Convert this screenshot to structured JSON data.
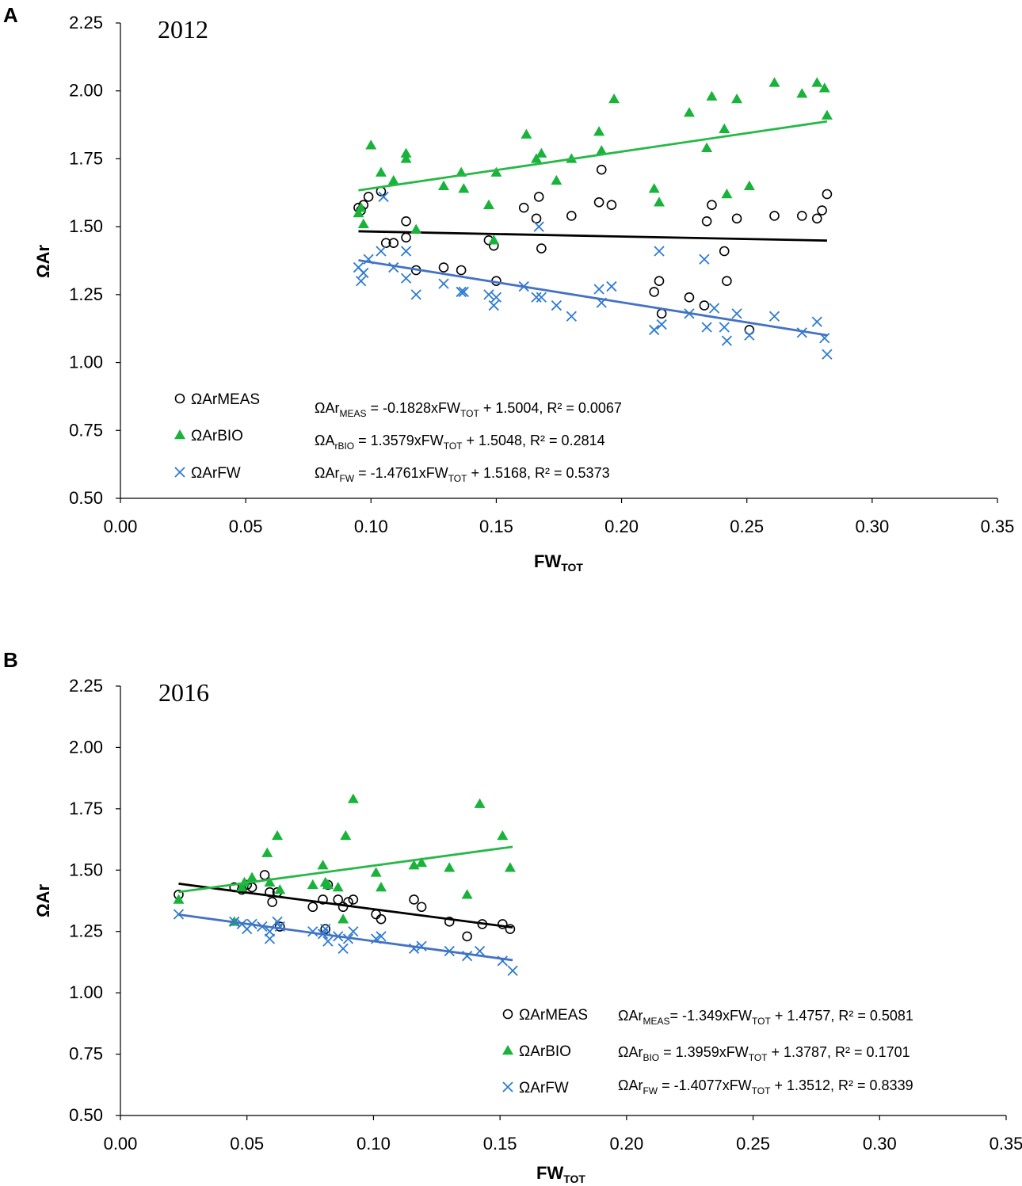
{
  "colors": {
    "meas": "#000000",
    "bio": "#19b33b",
    "bio_line": "#27b847",
    "fw": "#2e7bd0",
    "fw_line": "#4472c4",
    "axis": "#000000"
  },
  "chart_data": [
    {
      "type": "scatter",
      "panel": "A",
      "title": "2012",
      "xlabel": "FW",
      "xlabel_sub": "TOT",
      "ylabel": "ΩAr",
      "xlim": [
        0,
        0.35
      ],
      "ylim": [
        0.5,
        2.25
      ],
      "xticks": [
        "0.00",
        "0.05",
        "0.10",
        "0.15",
        "0.20",
        "0.25",
        "0.30",
        "0.35"
      ],
      "yticks": [
        "0.50",
        "0.75",
        "1.00",
        "1.25",
        "1.50",
        "1.75",
        "2.00",
        "2.25"
      ],
      "series": [
        {
          "name": "ΩArMEAS",
          "key": "meas",
          "marker": "circle",
          "trend": {
            "slope": -0.1828,
            "intercept": 1.5004,
            "x_range": [
              0.095,
              0.282
            ]
          },
          "equation": {
            "base": "ΩAr",
            "sub": "MEAS",
            "mid": " = -0.1828xFW",
            "sub2": "TOT",
            "tail": " + 1.5004, R² = 0.0067"
          },
          "points": [
            [
              0.095,
              1.57
            ],
            [
              0.096,
              1.56
            ],
            [
              0.097,
              1.58
            ],
            [
              0.099,
              1.61
            ],
            [
              0.104,
              1.63
            ],
            [
              0.106,
              1.44
            ],
            [
              0.109,
              1.44
            ],
            [
              0.114,
              1.52
            ],
            [
              0.114,
              1.46
            ],
            [
              0.118,
              1.34
            ],
            [
              0.129,
              1.35
            ],
            [
              0.136,
              1.34
            ],
            [
              0.147,
              1.45
            ],
            [
              0.149,
              1.43
            ],
            [
              0.15,
              1.3
            ],
            [
              0.161,
              1.57
            ],
            [
              0.166,
              1.53
            ],
            [
              0.167,
              1.61
            ],
            [
              0.168,
              1.42
            ],
            [
              0.18,
              1.54
            ],
            [
              0.191,
              1.59
            ],
            [
              0.192,
              1.71
            ],
            [
              0.196,
              1.58
            ],
            [
              0.213,
              1.26
            ],
            [
              0.215,
              1.3
            ],
            [
              0.216,
              1.18
            ],
            [
              0.227,
              1.24
            ],
            [
              0.233,
              1.21
            ],
            [
              0.234,
              1.52
            ],
            [
              0.236,
              1.58
            ],
            [
              0.241,
              1.41
            ],
            [
              0.242,
              1.3
            ],
            [
              0.246,
              1.53
            ],
            [
              0.251,
              1.12
            ],
            [
              0.261,
              1.54
            ],
            [
              0.272,
              1.54
            ],
            [
              0.278,
              1.53
            ],
            [
              0.28,
              1.56
            ],
            [
              0.282,
              1.62
            ]
          ]
        },
        {
          "name": "ΩArBIO",
          "key": "bio",
          "marker": "triangle",
          "trend": {
            "slope": 1.3579,
            "intercept": 1.5048,
            "x_range": [
              0.095,
              0.282
            ]
          },
          "equation": {
            "base": "ΩA",
            "sub": "rBIO",
            "mid": " = 1.3579xFW",
            "sub2": "TOT",
            "tail": " + 1.5048, R² = 0.2814"
          },
          "points": [
            [
              0.095,
              1.55
            ],
            [
              0.096,
              1.57
            ],
            [
              0.097,
              1.51
            ],
            [
              0.1,
              1.8
            ],
            [
              0.104,
              1.7
            ],
            [
              0.109,
              1.67
            ],
            [
              0.114,
              1.77
            ],
            [
              0.114,
              1.75
            ],
            [
              0.118,
              1.49
            ],
            [
              0.129,
              1.65
            ],
            [
              0.136,
              1.7
            ],
            [
              0.137,
              1.64
            ],
            [
              0.147,
              1.58
            ],
            [
              0.149,
              1.45
            ],
            [
              0.15,
              1.7
            ],
            [
              0.162,
              1.84
            ],
            [
              0.166,
              1.75
            ],
            [
              0.168,
              1.77
            ],
            [
              0.174,
              1.67
            ],
            [
              0.18,
              1.75
            ],
            [
              0.191,
              1.85
            ],
            [
              0.192,
              1.78
            ],
            [
              0.197,
              1.97
            ],
            [
              0.213,
              1.64
            ],
            [
              0.215,
              1.59
            ],
            [
              0.227,
              1.92
            ],
            [
              0.234,
              1.79
            ],
            [
              0.236,
              1.98
            ],
            [
              0.241,
              1.86
            ],
            [
              0.242,
              1.62
            ],
            [
              0.246,
              1.97
            ],
            [
              0.251,
              1.65
            ],
            [
              0.261,
              2.03
            ],
            [
              0.272,
              1.99
            ],
            [
              0.278,
              2.03
            ],
            [
              0.281,
              2.01
            ],
            [
              0.282,
              1.91
            ]
          ]
        },
        {
          "name": "ΩArFW",
          "key": "fw",
          "marker": "cross",
          "trend": {
            "slope": -1.4761,
            "intercept": 1.5168,
            "x_range": [
              0.095,
              0.282
            ]
          },
          "equation": {
            "base": "ΩAr",
            "sub": "FW",
            "mid": " = -1.4761xFW",
            "sub2": "TOT",
            "tail": " + 1.5168, R² = 0.5373"
          },
          "points": [
            [
              0.095,
              1.35
            ],
            [
              0.096,
              1.3
            ],
            [
              0.097,
              1.33
            ],
            [
              0.099,
              1.38
            ],
            [
              0.104,
              1.41
            ],
            [
              0.105,
              1.61
            ],
            [
              0.109,
              1.35
            ],
            [
              0.114,
              1.41
            ],
            [
              0.114,
              1.31
            ],
            [
              0.118,
              1.25
            ],
            [
              0.129,
              1.29
            ],
            [
              0.136,
              1.26
            ],
            [
              0.137,
              1.26
            ],
            [
              0.147,
              1.25
            ],
            [
              0.149,
              1.21
            ],
            [
              0.15,
              1.24
            ],
            [
              0.161,
              1.28
            ],
            [
              0.166,
              1.24
            ],
            [
              0.167,
              1.5
            ],
            [
              0.168,
              1.24
            ],
            [
              0.174,
              1.21
            ],
            [
              0.18,
              1.17
            ],
            [
              0.191,
              1.27
            ],
            [
              0.192,
              1.22
            ],
            [
              0.196,
              1.28
            ],
            [
              0.213,
              1.12
            ],
            [
              0.215,
              1.41
            ],
            [
              0.216,
              1.14
            ],
            [
              0.227,
              1.18
            ],
            [
              0.233,
              1.38
            ],
            [
              0.234,
              1.13
            ],
            [
              0.237,
              1.2
            ],
            [
              0.241,
              1.13
            ],
            [
              0.242,
              1.08
            ],
            [
              0.246,
              1.18
            ],
            [
              0.251,
              1.1
            ],
            [
              0.261,
              1.17
            ],
            [
              0.272,
              1.11
            ],
            [
              0.278,
              1.15
            ],
            [
              0.281,
              1.09
            ],
            [
              0.282,
              1.03
            ]
          ]
        }
      ]
    },
    {
      "type": "scatter",
      "panel": "B",
      "title": "2016",
      "xlabel": "FW",
      "xlabel_sub": "TOT",
      "ylabel": "ΩAr",
      "xlim": [
        0,
        0.35
      ],
      "ylim": [
        0.5,
        2.25
      ],
      "xticks": [
        "0.00",
        "0.05",
        "0.10",
        "0.15",
        "0.20",
        "0.25",
        "0.30",
        "0.35"
      ],
      "yticks": [
        "0.50",
        "0.75",
        "1.00",
        "1.25",
        "1.50",
        "1.75",
        "2.00",
        "2.25"
      ],
      "series": [
        {
          "name": "ΩArMEAS",
          "key": "meas",
          "marker": "circle",
          "trend": {
            "slope": -1.349,
            "intercept": 1.4757,
            "x_range": [
              0.023,
              0.155
            ]
          },
          "equation": {
            "base": "ΩAr",
            "sub": "MEAS",
            "mid": "= -1.349xFW",
            "sub2": "TOT",
            "tail": " + 1.4757, R² = 0.5081"
          },
          "points": [
            [
              0.023,
              1.4
            ],
            [
              0.045,
              1.43
            ],
            [
              0.048,
              1.42
            ],
            [
              0.05,
              1.44
            ],
            [
              0.052,
              1.43
            ],
            [
              0.057,
              1.48
            ],
            [
              0.059,
              1.41
            ],
            [
              0.06,
              1.37
            ],
            [
              0.062,
              1.41
            ],
            [
              0.063,
              1.27
            ],
            [
              0.076,
              1.35
            ],
            [
              0.08,
              1.38
            ],
            [
              0.081,
              1.26
            ],
            [
              0.082,
              1.44
            ],
            [
              0.086,
              1.38
            ],
            [
              0.088,
              1.35
            ],
            [
              0.09,
              1.37
            ],
            [
              0.092,
              1.38
            ],
            [
              0.101,
              1.32
            ],
            [
              0.103,
              1.3
            ],
            [
              0.116,
              1.38
            ],
            [
              0.119,
              1.35
            ],
            [
              0.13,
              1.29
            ],
            [
              0.137,
              1.23
            ],
            [
              0.143,
              1.28
            ],
            [
              0.151,
              1.28
            ],
            [
              0.154,
              1.26
            ]
          ]
        },
        {
          "name": "ΩArBIO",
          "key": "bio",
          "marker": "triangle",
          "trend": {
            "slope": 1.3959,
            "intercept": 1.3787,
            "x_range": [
              0.023,
              0.155
            ]
          },
          "equation": {
            "base": "ΩAr",
            "sub": "BIO",
            "mid": " = 1.3959xFW",
            "sub2": "TOT",
            "tail": " + 1.3787, R² = 0.1701"
          },
          "points": [
            [
              0.023,
              1.38
            ],
            [
              0.045,
              1.29
            ],
            [
              0.048,
              1.43
            ],
            [
              0.049,
              1.45
            ],
            [
              0.052,
              1.47
            ],
            [
              0.058,
              1.57
            ],
            [
              0.059,
              1.45
            ],
            [
              0.062,
              1.64
            ],
            [
              0.063,
              1.42
            ],
            [
              0.076,
              1.44
            ],
            [
              0.08,
              1.52
            ],
            [
              0.081,
              1.45
            ],
            [
              0.082,
              1.44
            ],
            [
              0.086,
              1.43
            ],
            [
              0.088,
              1.3
            ],
            [
              0.089,
              1.64
            ],
            [
              0.092,
              1.79
            ],
            [
              0.101,
              1.49
            ],
            [
              0.103,
              1.43
            ],
            [
              0.116,
              1.52
            ],
            [
              0.119,
              1.53
            ],
            [
              0.13,
              1.51
            ],
            [
              0.137,
              1.4
            ],
            [
              0.142,
              1.77
            ],
            [
              0.151,
              1.64
            ],
            [
              0.154,
              1.51
            ]
          ]
        },
        {
          "name": "ΩArFW",
          "key": "fw",
          "marker": "cross",
          "trend": {
            "slope": -1.4077,
            "intercept": 1.3512,
            "x_range": [
              0.023,
              0.155
            ]
          },
          "equation": {
            "base": "ΩAr",
            "sub": "FW",
            "mid": " = -1.4077xFW",
            "sub2": "TOT",
            "tail": " + 1.3512, R² = 0.8339"
          },
          "points": [
            [
              0.023,
              1.32
            ],
            [
              0.045,
              1.29
            ],
            [
              0.048,
              1.28
            ],
            [
              0.05,
              1.26
            ],
            [
              0.052,
              1.28
            ],
            [
              0.056,
              1.27
            ],
            [
              0.059,
              1.25
            ],
            [
              0.059,
              1.22
            ],
            [
              0.062,
              1.29
            ],
            [
              0.063,
              1.27
            ],
            [
              0.076,
              1.25
            ],
            [
              0.08,
              1.24
            ],
            [
              0.081,
              1.26
            ],
            [
              0.082,
              1.21
            ],
            [
              0.086,
              1.23
            ],
            [
              0.088,
              1.18
            ],
            [
              0.09,
              1.22
            ],
            [
              0.092,
              1.25
            ],
            [
              0.101,
              1.22
            ],
            [
              0.103,
              1.23
            ],
            [
              0.116,
              1.18
            ],
            [
              0.119,
              1.19
            ],
            [
              0.13,
              1.17
            ],
            [
              0.137,
              1.15
            ],
            [
              0.142,
              1.17
            ],
            [
              0.151,
              1.13
            ],
            [
              0.155,
              1.09
            ]
          ]
        }
      ]
    }
  ]
}
